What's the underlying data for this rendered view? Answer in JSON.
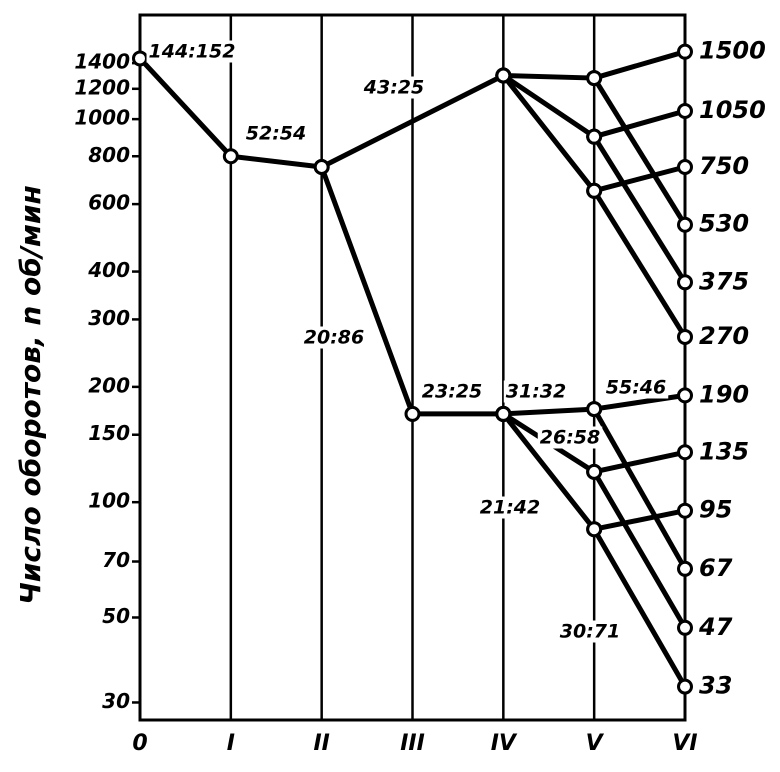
{
  "chart_data": {
    "type": "line",
    "y_label": "Число оборотов, n об/мин",
    "categories": [
      "0",
      "I",
      "II",
      "III",
      "IV",
      "V",
      "VI"
    ],
    "log_scale": true,
    "color": "#000000",
    "ylim": [
      27,
      1870
    ],
    "yticks": [
      30,
      50,
      70,
      100,
      150,
      200,
      300,
      400,
      600,
      800,
      1000,
      1200,
      1400
    ],
    "y2lim": [
      27,
      1870
    ],
    "y2ticks": [
      33,
      47,
      67,
      95,
      135,
      190,
      270,
      375,
      530,
      750,
      1050,
      1500
    ],
    "series": [
      {
        "x": [
          0,
          1,
          2,
          3,
          4
        ],
        "values": [
          1440,
          800,
          750,
          170,
          170
        ]
      },
      {
        "x": [
          2,
          4
        ],
        "values": [
          750,
          1300
        ]
      },
      {
        "x": [
          4,
          5,
          6
        ],
        "values": [
          1300,
          1280,
          1500
        ]
      },
      {
        "x": [
          5,
          6
        ],
        "values": [
          1280,
          530
        ]
      },
      {
        "x": [
          4,
          5,
          6
        ],
        "values": [
          1300,
          900,
          1050
        ]
      },
      {
        "x": [
          5,
          6
        ],
        "values": [
          900,
          375
        ]
      },
      {
        "x": [
          4,
          5,
          6
        ],
        "values": [
          1300,
          650,
          750
        ]
      },
      {
        "x": [
          5,
          6
        ],
        "values": [
          650,
          270
        ]
      },
      {
        "x": [
          4,
          5,
          6
        ],
        "values": [
          170,
          175,
          190
        ]
      },
      {
        "x": [
          5,
          6
        ],
        "values": [
          175,
          67
        ]
      },
      {
        "x": [
          4,
          5,
          6
        ],
        "values": [
          170,
          120,
          135
        ]
      },
      {
        "x": [
          5,
          6
        ],
        "values": [
          120,
          47
        ]
      },
      {
        "x": [
          4,
          5,
          6
        ],
        "values": [
          170,
          85,
          95
        ]
      },
      {
        "x": [
          5,
          6
        ],
        "values": [
          85,
          33
        ]
      }
    ],
    "annotations": [
      "144:152",
      "52:54",
      "43:25",
      "20:86",
      "23:25",
      "31:32",
      "55:46",
      "26:58",
      "21:42",
      "30:71"
    ]
  }
}
